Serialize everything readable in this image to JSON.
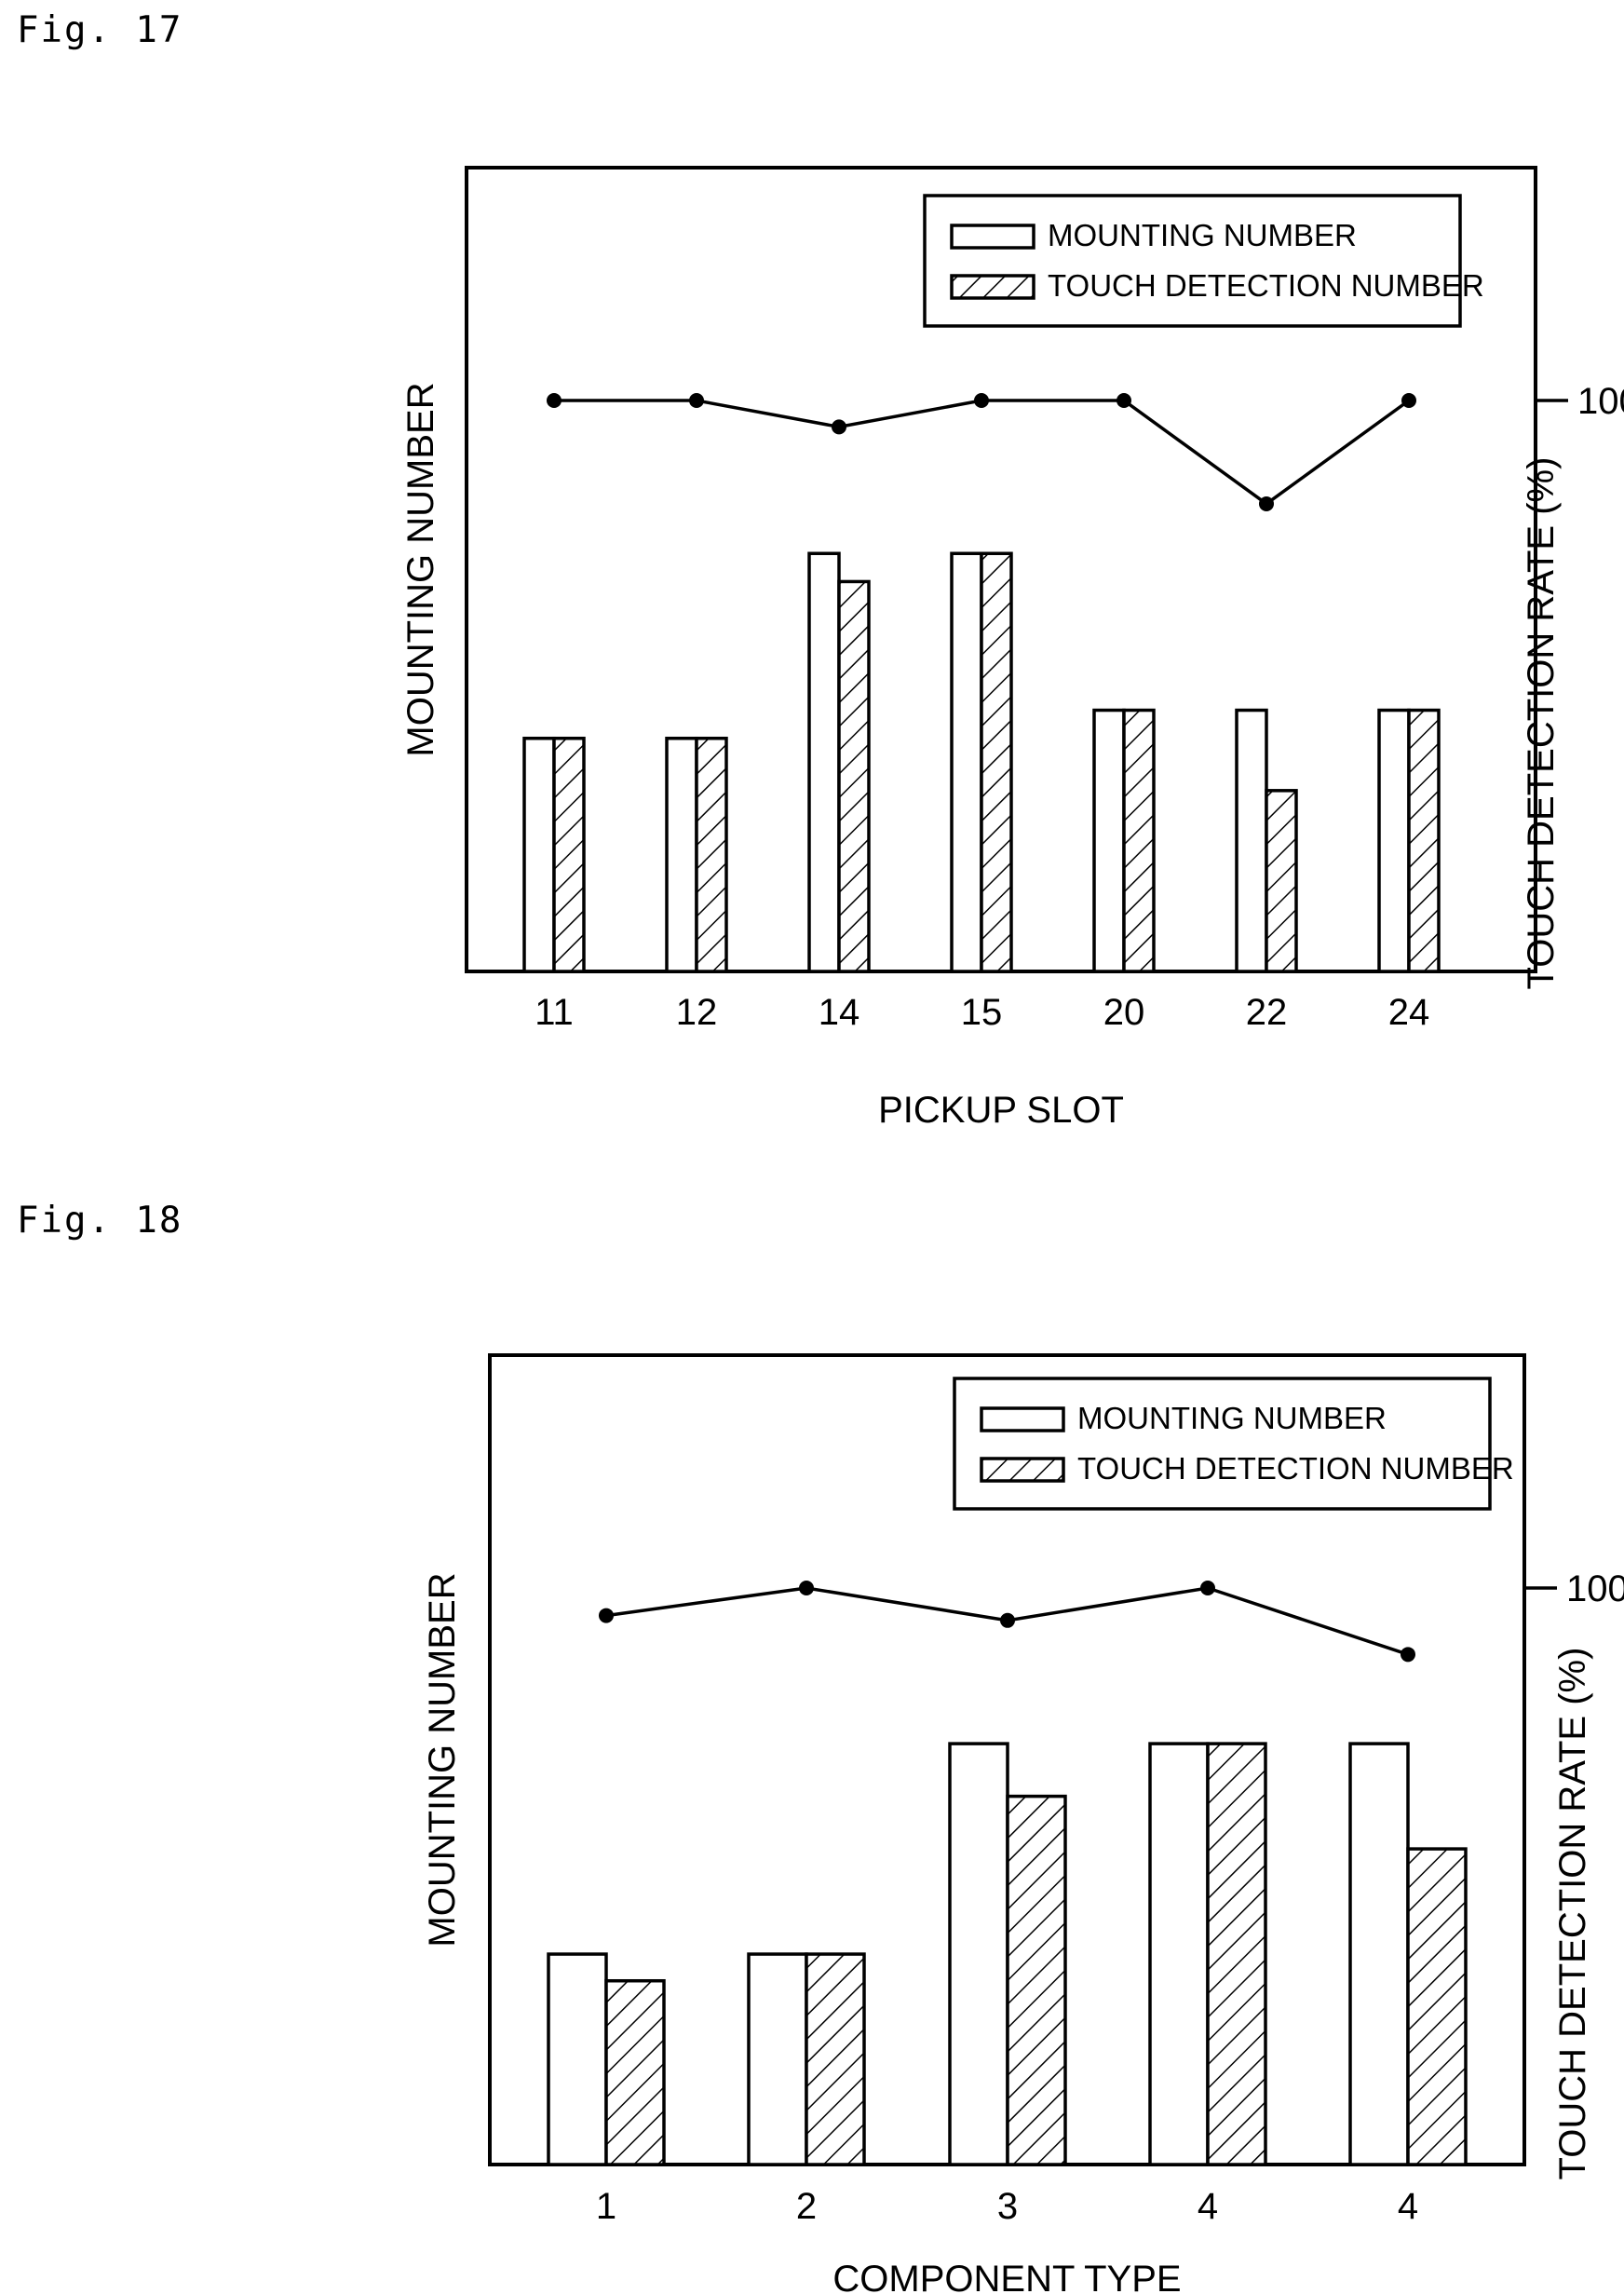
{
  "figures": [
    {
      "fig_label": "Fig. 17",
      "chart_data": {
        "type": "bar",
        "categories": [
          "11",
          "12",
          "14",
          "15",
          "20",
          "22",
          "24"
        ],
        "series": [
          {
            "name": "MOUNTING NUMBER",
            "values": [
              0.29,
              0.29,
              0.52,
              0.52,
              0.325,
              0.325,
              0.325
            ]
          },
          {
            "name": "TOUCH DETECTION NUMBER",
            "values": [
              0.29,
              0.29,
              0.485,
              0.52,
              0.325,
              0.225,
              0.325
            ]
          }
        ],
        "line": {
          "values": [
            100,
            100,
            96.7,
            100,
            100,
            87.1,
            100
          ]
        },
        "xlabel": "PICKUP SLOT",
        "ylabel": "MOUNTING NUMBER",
        "y2label": "TOUCH DETECTION RATE (%)",
        "y2ticks": [
          "100"
        ],
        "legend": "top-right",
        "grid": false
      }
    },
    {
      "fig_label": "Fig. 18",
      "chart_data": {
        "type": "bar",
        "categories": [
          "1",
          "2",
          "3",
          "4",
          "4"
        ],
        "series": [
          {
            "name": "MOUNTING NUMBER",
            "values": [
              0.26,
              0.26,
              0.52,
              0.52,
              0.52
            ]
          },
          {
            "name": "TOUCH DETECTION NUMBER",
            "values": [
              0.227,
              0.26,
              0.455,
              0.52,
              0.39
            ]
          }
        ],
        "line": {
          "values": [
            96.6,
            100,
            96.0,
            100,
            91.8
          ]
        },
        "xlabel": "COMPONENT TYPE",
        "ylabel": "MOUNTING NUMBER",
        "y2label": "TOUCH DETECTION RATE (%)",
        "y2ticks": [
          "100"
        ],
        "legend": "top-right",
        "grid": false
      }
    }
  ]
}
